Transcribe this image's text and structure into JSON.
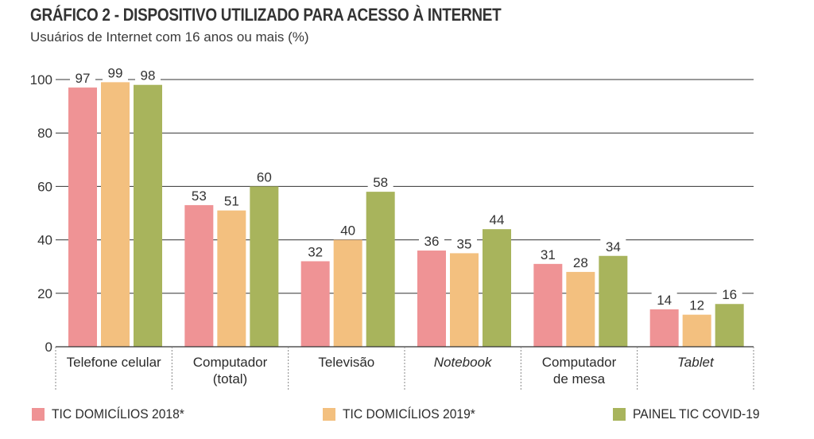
{
  "title": "GRÁFICO 2 - DISPOSITIVO UTILIZADO PARA ACESSO À INTERNET",
  "subtitle": "Usuários de Internet com 16 anos ou mais (%)",
  "colors": {
    "TIC DOMICÍLIOS 2018*": "#ef9395",
    "TIC DOMICÍLIOS 2019*": "#f3c07f",
    "PAINEL TIC COVID-19": "#a8b45c",
    "gridline": "#333333",
    "text": "#333333"
  },
  "chart_data": {
    "type": "bar",
    "title": "GRÁFICO 2 - DISPOSITIVO UTILIZADO PARA ACESSO À INTERNET",
    "subtitle": "Usuários de Internet com 16 anos ou mais (%)",
    "categories": [
      [
        "Telefone celular"
      ],
      [
        "Computador",
        "(total)"
      ],
      [
        "Televisão"
      ],
      [
        "Notebook"
      ],
      [
        "Computador",
        "de mesa"
      ],
      [
        "Tablet"
      ]
    ],
    "italic_categories": [
      false,
      false,
      false,
      true,
      false,
      true
    ],
    "series": [
      {
        "name": "TIC DOMICÍLIOS 2018*",
        "values": [
          97,
          53,
          32,
          36,
          31,
          14
        ]
      },
      {
        "name": "TIC DOMICÍLIOS 2019*",
        "values": [
          99,
          51,
          40,
          35,
          28,
          12
        ]
      },
      {
        "name": "PAINEL TIC COVID-19",
        "values": [
          98,
          60,
          58,
          44,
          34,
          16
        ]
      }
    ],
    "yticks": [
      0,
      20,
      40,
      60,
      80,
      100
    ],
    "ylim": [
      0,
      100
    ],
    "grid": true,
    "legend_position": "bottom"
  },
  "legend": [
    {
      "label": "TIC DOMICÍLIOS 2018*",
      "color": "#ef9395"
    },
    {
      "label": "TIC DOMICÍLIOS 2019*",
      "color": "#f3c07f"
    },
    {
      "label": "PAINEL TIC COVID-19",
      "color": "#a8b45c"
    }
  ]
}
